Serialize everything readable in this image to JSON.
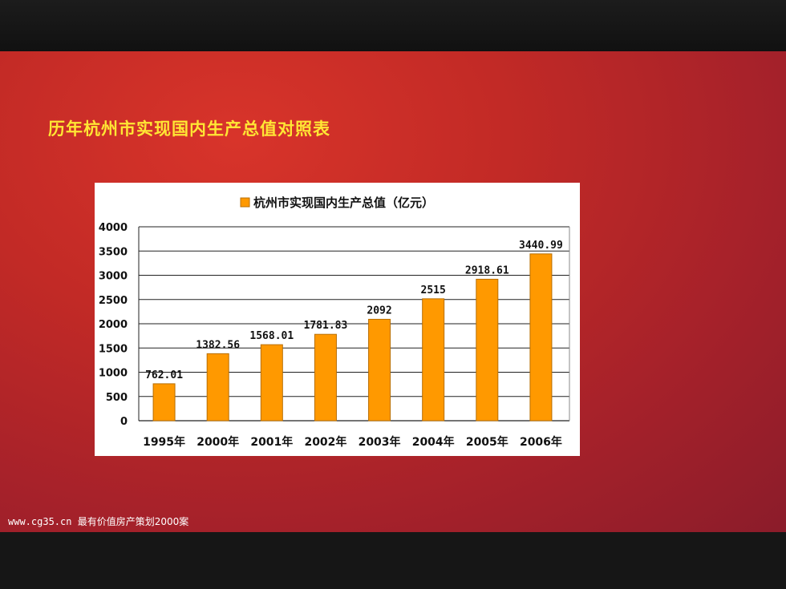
{
  "slide": {
    "title": "历年杭州市实现国内生产总值对照表",
    "footer_url": "www.cg35.cn",
    "footer_text": "最有价值房产策划2000案"
  },
  "colors": {
    "bar": "#ff9900",
    "bar_stroke": "#b86e00",
    "title": "#ffe634",
    "slide_bg": "#c22a26"
  },
  "chart_data": {
    "type": "bar",
    "legend": "杭州市实现国内生产总值（亿元）",
    "legend_position": "top",
    "categories": [
      "1995年",
      "2000年",
      "2001年",
      "2002年",
      "2003年",
      "2004年",
      "2005年",
      "2006年"
    ],
    "values": [
      762.01,
      1382.56,
      1568.01,
      1781.83,
      2092,
      2515,
      2918.61,
      3440.99
    ],
    "value_labels": [
      "762.01",
      "1382.56",
      "1568.01",
      "1781.83",
      "2092",
      "2515",
      "2918.61",
      "3440.99"
    ],
    "y_ticks": [
      "0",
      "500",
      "1000",
      "1500",
      "2000",
      "2500",
      "3000",
      "3500",
      "4000"
    ],
    "ylim": [
      0,
      4000
    ],
    "grid": true
  }
}
